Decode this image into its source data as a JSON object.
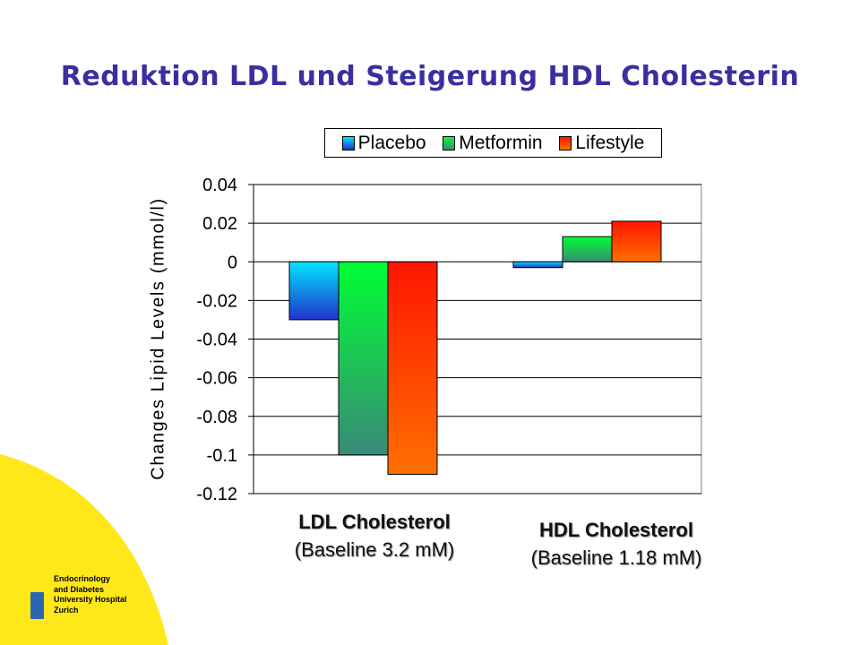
{
  "slide": {
    "title": "Reduktion LDL und Steigerung HDL Cholesterin"
  },
  "chart_data": {
    "type": "bar",
    "categories": [
      "LDL Cholesterol",
      "HDL Cholesterol"
    ],
    "category_subtitles": [
      "(Baseline 3.2 mM)",
      "(Baseline 1.18 mM)"
    ],
    "series": [
      {
        "name": "Placebo",
        "values": [
          -0.03,
          -0.003
        ],
        "colors": [
          "#00e5ff",
          "#2233cc"
        ]
      },
      {
        "name": "Metformin",
        "values": [
          -0.1,
          0.013
        ],
        "colors": [
          "#00ff33",
          "#3a8a78"
        ]
      },
      {
        "name": "Lifestyle",
        "values": [
          -0.11,
          0.021
        ],
        "colors": [
          "#ff1500",
          "#ff7000"
        ]
      }
    ],
    "ylabel": "Changes Lipid Levels (mmol/l)",
    "xlabel": "",
    "ylim": [
      -0.12,
      0.04
    ],
    "yticks": [
      "0.04",
      "0.02",
      "0",
      "-0.02",
      "-0.04",
      "-0.06",
      "-0.08",
      "-0.1",
      "-0.12"
    ],
    "grid": true,
    "legend": "top-right"
  },
  "footer": {
    "line1": "Endocrinology",
    "line2": "and Diabetes",
    "line3": "University Hospital",
    "line4": "Zurich"
  },
  "colors": {
    "title": "#3a2fa0",
    "background_accent": "#ffe81a",
    "logo": "#2a67b0"
  }
}
